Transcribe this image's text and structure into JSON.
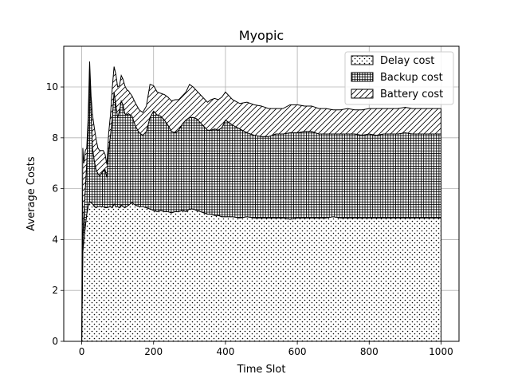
{
  "chart_data": {
    "type": "area",
    "stacked": true,
    "title": "Myopic",
    "xlabel": "Time Slot",
    "ylabel": "Average Costs",
    "xlim": [
      -50,
      1050
    ],
    "ylim": [
      0,
      11.6
    ],
    "xticks": [
      0,
      200,
      400,
      600,
      800,
      1000
    ],
    "yticks": [
      0,
      2,
      4,
      6,
      8,
      10
    ],
    "grid": true,
    "legend_position": "top-right",
    "x": [
      0,
      3,
      6,
      10,
      14,
      18,
      22,
      26,
      30,
      35,
      40,
      45,
      50,
      55,
      60,
      65,
      70,
      75,
      80,
      85,
      90,
      95,
      100,
      105,
      110,
      115,
      120,
      125,
      130,
      140,
      150,
      160,
      170,
      180,
      190,
      200,
      210,
      220,
      230,
      240,
      250,
      260,
      270,
      280,
      290,
      300,
      310,
      320,
      330,
      340,
      350,
      360,
      370,
      380,
      390,
      400,
      420,
      440,
      460,
      480,
      500,
      520,
      540,
      560,
      580,
      600,
      620,
      640,
      660,
      680,
      700,
      720,
      740,
      760,
      780,
      800,
      820,
      840,
      860,
      880,
      900,
      920,
      940,
      960,
      980,
      1000
    ],
    "series": [
      {
        "name": "Delay cost",
        "hatch": "dots",
        "values": [
          0.0,
          3.5,
          4.0,
          4.5,
          5.0,
          5.3,
          5.5,
          5.45,
          5.4,
          5.3,
          5.25,
          5.3,
          5.3,
          5.3,
          5.3,
          5.25,
          5.25,
          5.28,
          5.3,
          5.25,
          5.4,
          5.3,
          5.3,
          5.25,
          5.35,
          5.3,
          5.25,
          5.3,
          5.35,
          5.45,
          5.35,
          5.3,
          5.3,
          5.25,
          5.2,
          5.15,
          5.1,
          5.15,
          5.1,
          5.1,
          5.05,
          5.1,
          5.1,
          5.15,
          5.1,
          5.2,
          5.2,
          5.15,
          5.1,
          5.05,
          5.0,
          5.0,
          4.95,
          4.95,
          4.9,
          4.9,
          4.9,
          4.85,
          4.9,
          4.85,
          4.85,
          4.85,
          4.85,
          4.85,
          4.8,
          4.85,
          4.85,
          4.85,
          4.85,
          4.85,
          4.9,
          4.85,
          4.85,
          4.85,
          4.85,
          4.85,
          4.85,
          4.85,
          4.85,
          4.85,
          4.85,
          4.85,
          4.85,
          4.85,
          4.85,
          4.85
        ]
      },
      {
        "name": "Backup cost",
        "hatch": "grid",
        "values": [
          0.0,
          0.5,
          1.0,
          1.5,
          2.0,
          3.0,
          5.2,
          3.6,
          2.2,
          1.8,
          1.5,
          1.3,
          1.2,
          1.3,
          1.4,
          1.5,
          1.2,
          2.2,
          2.8,
          3.5,
          4.4,
          4.0,
          3.5,
          3.8,
          4.1,
          4.0,
          3.7,
          3.6,
          3.6,
          3.4,
          3.1,
          2.9,
          2.8,
          3.0,
          3.6,
          3.9,
          3.8,
          3.7,
          3.6,
          3.4,
          3.2,
          3.1,
          3.2,
          3.4,
          3.6,
          3.6,
          3.6,
          3.6,
          3.5,
          3.4,
          3.3,
          3.3,
          3.4,
          3.35,
          3.5,
          3.8,
          3.6,
          3.5,
          3.3,
          3.25,
          3.2,
          3.2,
          3.3,
          3.3,
          3.4,
          3.35,
          3.4,
          3.4,
          3.3,
          3.3,
          3.25,
          3.3,
          3.3,
          3.3,
          3.25,
          3.3,
          3.25,
          3.3,
          3.3,
          3.3,
          3.35,
          3.3,
          3.3,
          3.3,
          3.3,
          3.3
        ]
      },
      {
        "name": "Battery cost",
        "hatch": "diagonal",
        "values": [
          0.0,
          3.6,
          2.0,
          1.5,
          0.6,
          0.5,
          0.3,
          0.6,
          1.3,
          1.3,
          1.2,
          1.0,
          1.0,
          0.9,
          0.8,
          0.6,
          0.5,
          0.7,
          0.8,
          1.2,
          1.0,
          1.2,
          1.2,
          1.0,
          1.0,
          1.0,
          1.1,
          1.0,
          0.9,
          0.8,
          0.9,
          0.9,
          0.9,
          1.0,
          1.3,
          1.0,
          0.9,
          0.9,
          1.0,
          1.1,
          1.2,
          1.3,
          1.2,
          1.1,
          1.1,
          1.3,
          1.2,
          1.1,
          1.1,
          1.1,
          1.1,
          1.2,
          1.2,
          1.2,
          1.2,
          1.1,
          1.0,
          1.0,
          1.2,
          1.2,
          1.2,
          1.1,
          1.0,
          1.0,
          1.1,
          1.1,
          1.0,
          1.0,
          1.0,
          1.0,
          0.95,
          0.95,
          1.0,
          0.95,
          1.0,
          1.0,
          1.05,
          1.0,
          1.0,
          1.0,
          1.0,
          1.0,
          1.0,
          1.0,
          1.0,
          1.0
        ]
      }
    ]
  }
}
